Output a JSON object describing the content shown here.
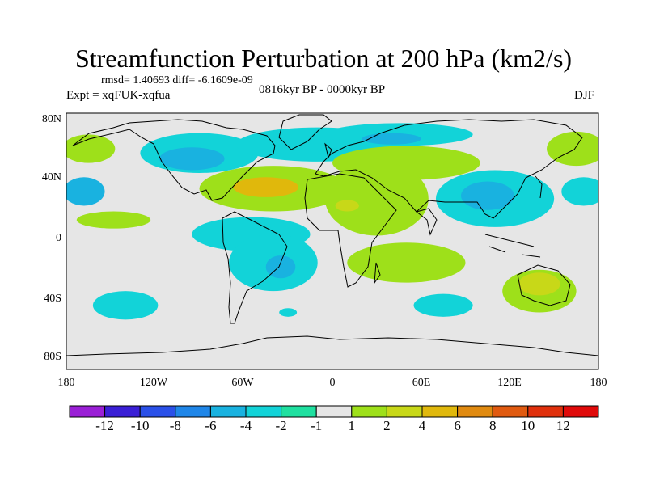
{
  "title": "Streamfunction Perturbation at 200 hPa (km2/s)",
  "stats_text": "rmsd= 1.40693 diff= -6.1609e-09",
  "experiment": "Expt = xqFUK-xqfua",
  "period": "0816kyr BP - 0000kyr BP",
  "season": "DJF",
  "lat_ticks": [
    "80N",
    "40N",
    "0",
    "40S",
    "80S"
  ],
  "lon_ticks": [
    "180",
    "120W",
    "60W",
    "0",
    "60E",
    "120E",
    "180"
  ],
  "colorbar": {
    "labels": [
      "-12",
      "-10",
      "-8",
      "-6",
      "-4",
      "-2",
      "-1",
      "1",
      "2",
      "4",
      "6",
      "8",
      "10",
      "12"
    ],
    "colors": [
      "#9a1fd6",
      "#3a1fd6",
      "#2a50e8",
      "#1f86e8",
      "#19b2e0",
      "#12d3d8",
      "#1fe0a0",
      "#e6e6e6",
      "#9ee01a",
      "#c8d818",
      "#e0b80c",
      "#e08a10",
      "#e05a10",
      "#e0300c",
      "#e00a0a"
    ]
  },
  "chart_data": {
    "type": "heatmap",
    "title": "Streamfunction Perturbation at 200 hPa (km2/s)",
    "projection": "cylindrical equidistant",
    "lon_range": [
      -180,
      180
    ],
    "lat_range": [
      -90,
      90
    ],
    "regions": [
      {
        "lat": 65,
        "lon": -165,
        "rx": 18,
        "ry": 10,
        "level": 2
      },
      {
        "lat": 62,
        "lon": -90,
        "rx": 40,
        "ry": 14,
        "level": -2
      },
      {
        "lat": 58,
        "lon": -95,
        "rx": 22,
        "ry": 8,
        "level": -4
      },
      {
        "lat": 68,
        "lon": -10,
        "rx": 55,
        "ry": 12,
        "level": -2
      },
      {
        "lat": 75,
        "lon": 45,
        "rx": 50,
        "ry": 8,
        "level": -2
      },
      {
        "lat": 72,
        "lon": 40,
        "rx": 20,
        "ry": 4,
        "level": -4
      },
      {
        "lat": 55,
        "lon": 50,
        "rx": 50,
        "ry": 12,
        "level": 2
      },
      {
        "lat": 65,
        "lon": 165,
        "rx": 20,
        "ry": 12,
        "level": 2
      },
      {
        "lat": 35,
        "lon": -168,
        "rx": 14,
        "ry": 10,
        "level": -4
      },
      {
        "lat": 37,
        "lon": -40,
        "rx": 50,
        "ry": 16,
        "level": 2
      },
      {
        "lat": 38,
        "lon": -45,
        "rx": 22,
        "ry": 7,
        "level": 6
      },
      {
        "lat": 30,
        "lon": 30,
        "rx": 35,
        "ry": 26,
        "level": 2
      },
      {
        "lat": 25,
        "lon": 10,
        "rx": 8,
        "ry": 4,
        "level": 4
      },
      {
        "lat": 30,
        "lon": 110,
        "rx": 40,
        "ry": 20,
        "level": -2
      },
      {
        "lat": 32,
        "lon": 105,
        "rx": 18,
        "ry": 10,
        "level": -4
      },
      {
        "lat": 35,
        "lon": 170,
        "rx": 15,
        "ry": 10,
        "level": -2
      },
      {
        "lat": 15,
        "lon": -148,
        "rx": 25,
        "ry": 6,
        "level": 2
      },
      {
        "lat": 5,
        "lon": -55,
        "rx": 40,
        "ry": 12,
        "level": -2
      },
      {
        "lat": -15,
        "lon": -40,
        "rx": 30,
        "ry": 20,
        "level": -2
      },
      {
        "lat": -18,
        "lon": -35,
        "rx": 10,
        "ry": 8,
        "level": -4
      },
      {
        "lat": -15,
        "lon": 50,
        "rx": 40,
        "ry": 14,
        "level": 2
      },
      {
        "lat": -45,
        "lon": -140,
        "rx": 22,
        "ry": 10,
        "level": -2
      },
      {
        "lat": -35,
        "lon": 140,
        "rx": 25,
        "ry": 15,
        "level": 2
      },
      {
        "lat": -30,
        "lon": 140,
        "rx": 14,
        "ry": 8,
        "level": 4
      },
      {
        "lat": -50,
        "lon": -30,
        "rx": 6,
        "ry": 3,
        "level": -2
      },
      {
        "lat": -45,
        "lon": 75,
        "rx": 20,
        "ry": 8,
        "level": -2
      }
    ]
  }
}
